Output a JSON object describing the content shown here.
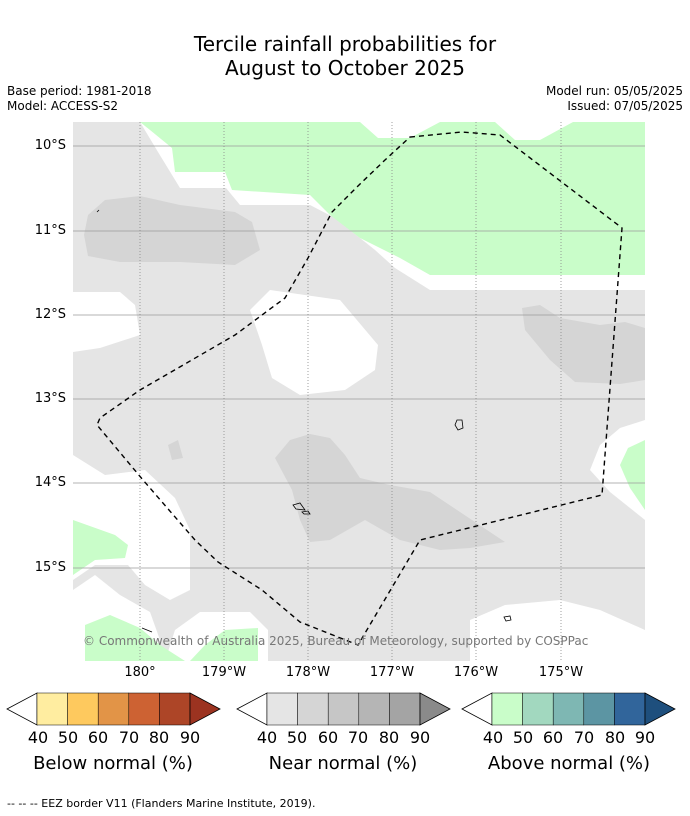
{
  "title_line1": "Tercile rainfall probabilities for",
  "title_line2": "August to October 2025",
  "base_period": "Base period: 1981-2018",
  "model": "Model: ACCESS-S2",
  "model_run": "Model run: 05/05/2025",
  "issued": "Issued: 07/05/2025",
  "lat_labels": [
    "10°S",
    "11°S",
    "12°S",
    "13°S",
    "14°S",
    "15°S"
  ],
  "lon_labels": [
    "180°",
    "179°W",
    "178°W",
    "177°W",
    "176°W",
    "175°W"
  ],
  "copyright": "© Commonwealth of Australia 2025, Bureau of Meteorology, supported by COSPPac",
  "footer": "--  --  -- EEZ border V11 (Flanders Marine Institute, 2019).",
  "colorbars": [
    {
      "name": "below",
      "title": "Below normal (%)",
      "ticks": [
        "40",
        "50",
        "60",
        "70",
        "80",
        "90"
      ],
      "colors": [
        "#ffeda0",
        "#fec95e",
        "#e29447",
        "#cd6233",
        "#ad4527",
        "#9c3320"
      ]
    },
    {
      "name": "near",
      "title": "Near normal (%)",
      "ticks": [
        "40",
        "50",
        "60",
        "70",
        "80",
        "90"
      ],
      "colors": [
        "#e5e5e5",
        "#d5d5d5",
        "#c6c6c6",
        "#b5b5b5",
        "#a4a4a4",
        "#8a8a8a"
      ]
    },
    {
      "name": "above",
      "title": "Above normal (%)",
      "ticks": [
        "40",
        "50",
        "60",
        "70",
        "80",
        "90"
      ],
      "colors": [
        "#c9fdc9",
        "#a2d8bf",
        "#7eb7b3",
        "#5c95a3",
        "#31659b",
        "#1e4f7d"
      ]
    }
  ],
  "map_colors": {
    "near_40": "#e5e5e5",
    "near_50": "#d5d5d5",
    "above_40": "#c9fdc9",
    "eez": "#000000",
    "grid": "#888888"
  }
}
